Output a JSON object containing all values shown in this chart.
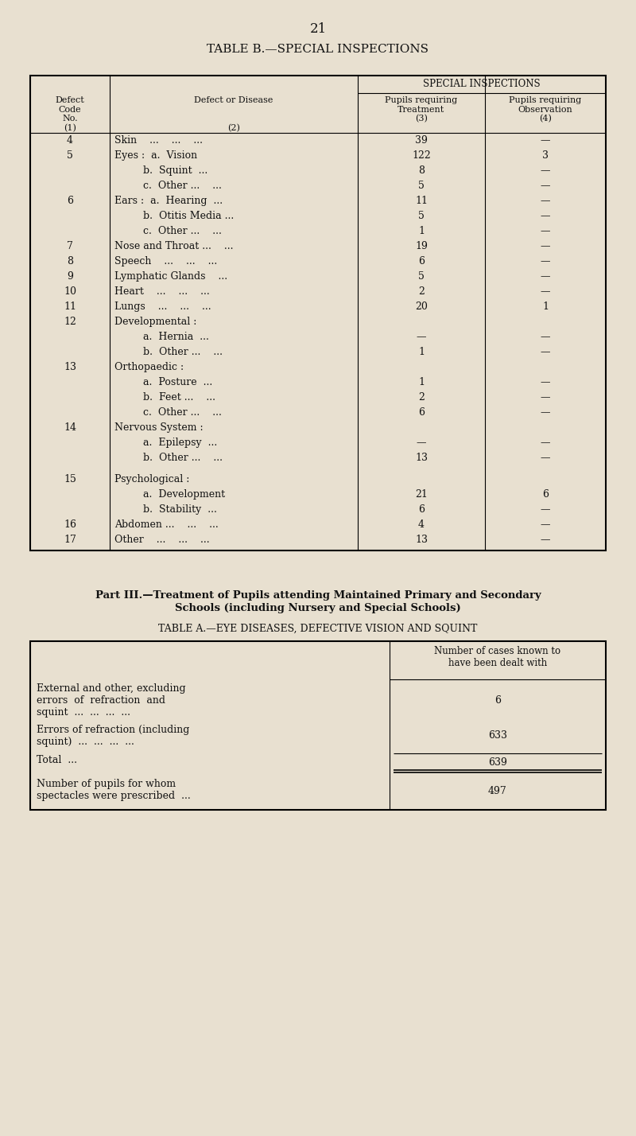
{
  "bg_color": "#e8e0d0",
  "page_number": "21",
  "table_b_title": "TABLE B.—SPECIAL INSPECTIONS",
  "special_inspections_header": "SPECIAL INSPECTIONS",
  "rows": [
    {
      "code": "4",
      "disease": "Skin    ...    ...    ...",
      "treat": "39",
      "obs": "—",
      "sub": false
    },
    {
      "code": "5",
      "disease": "Eyes :  a.  Vision",
      "treat": "122",
      "obs": "3",
      "sub": false
    },
    {
      "code": "",
      "disease": "         b.  Squint  ...",
      "treat": "8",
      "obs": "—",
      "sub": true
    },
    {
      "code": "",
      "disease": "         c.  Other ...    ...",
      "treat": "5",
      "obs": "—",
      "sub": true
    },
    {
      "code": "6",
      "disease": "Ears :  a.  Hearing  ...",
      "treat": "11",
      "obs": "—",
      "sub": false
    },
    {
      "code": "",
      "disease": "         b.  Otitis Media ...",
      "treat": "5",
      "obs": "—",
      "sub": true
    },
    {
      "code": "",
      "disease": "         c.  Other ...    ...",
      "treat": "1",
      "obs": "—",
      "sub": true
    },
    {
      "code": "7",
      "disease": "Nose and Throat ...    ...",
      "treat": "19",
      "obs": "—",
      "sub": false
    },
    {
      "code": "8",
      "disease": "Speech    ...    ...    ...",
      "treat": "6",
      "obs": "—",
      "sub": false
    },
    {
      "code": "9",
      "disease": "Lymphatic Glands    ...",
      "treat": "5",
      "obs": "—",
      "sub": false
    },
    {
      "code": "10",
      "disease": "Heart    ...    ...    ...",
      "treat": "2",
      "obs": "—",
      "sub": false
    },
    {
      "code": "11",
      "disease": "Lungs    ...    ...    ...",
      "treat": "20",
      "obs": "1",
      "sub": false
    },
    {
      "code": "12",
      "disease": "Developmental :",
      "treat": "",
      "obs": "",
      "sub": false
    },
    {
      "code": "",
      "disease": "         a.  Hernia  ...",
      "treat": "—",
      "obs": "—",
      "sub": true
    },
    {
      "code": "",
      "disease": "         b.  Other ...    ...",
      "treat": "1",
      "obs": "—",
      "sub": true
    },
    {
      "code": "13",
      "disease": "Orthopaedic :",
      "treat": "",
      "obs": "",
      "sub": false
    },
    {
      "code": "",
      "disease": "         a.  Posture  ...",
      "treat": "1",
      "obs": "—",
      "sub": true
    },
    {
      "code": "",
      "disease": "         b.  Feet ...    ...",
      "treat": "2",
      "obs": "—",
      "sub": true
    },
    {
      "code": "",
      "disease": "         c.  Other ...    ...",
      "treat": "6",
      "obs": "—",
      "sub": true
    },
    {
      "code": "14",
      "disease": "Nervous System :",
      "treat": "",
      "obs": "",
      "sub": false
    },
    {
      "code": "",
      "disease": "         a.  Epilepsy  ...",
      "treat": "—",
      "obs": "—",
      "sub": true
    },
    {
      "code": "",
      "disease": "         b.  Other ...    ...",
      "treat": "13",
      "obs": "—",
      "sub": true
    },
    {
      "code": "15",
      "disease": "Psychological :",
      "treat": "",
      "obs": "",
      "sub": false,
      "extra_space_before": true
    },
    {
      "code": "",
      "disease": "         a.  Development",
      "treat": "21",
      "obs": "6",
      "sub": true
    },
    {
      "code": "",
      "disease": "         b.  Stability  ...",
      "treat": "6",
      "obs": "—",
      "sub": true
    },
    {
      "code": "16",
      "disease": "Abdomen ...    ...    ...",
      "treat": "4",
      "obs": "—",
      "sub": false
    },
    {
      "code": "17",
      "disease": "Other    ...    ...    ...",
      "treat": "13",
      "obs": "—",
      "sub": false
    }
  ],
  "part3_title_line1": "Part III.—Treatment of Pupils attending Maintained Primary and Secondary",
  "part3_title_line2": "Schools (including Nursery and Special Schools)",
  "table_a_title": "TABLE A.—EYE DISEASES, DEFECTIVE VISION AND SQUINT",
  "table_a_col_header_line1": "Number of cases known to",
  "table_a_col_header_line2": "have been dealt with",
  "table_a_rows": [
    {
      "label_lines": [
        "External and other, excluding",
        "errors  of  refraction  and",
        "squint  ...  ...  ...  ..."
      ],
      "value": "6",
      "is_total": false
    },
    {
      "label_lines": [
        "Errors of refraction (including",
        "squint)  ...  ...  ...  ..."
      ],
      "value": "633",
      "is_total": false
    },
    {
      "label_lines": [
        "Total  ..."
      ],
      "value": "639",
      "is_total": true
    },
    {
      "label_lines": [
        "Number of pupils for whom",
        "spectacles were prescribed  ..."
      ],
      "value": "497",
      "is_total": false
    }
  ]
}
